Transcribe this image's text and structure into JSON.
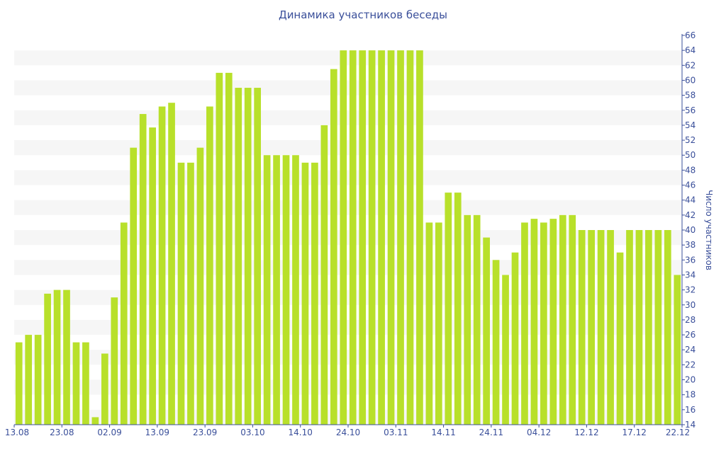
{
  "chart_data": {
    "type": "bar",
    "title": "Динамика участников беседы",
    "xlabel": "",
    "ylabel": "Число участников",
    "ylim": [
      14,
      66
    ],
    "yticks": [
      14,
      16,
      18,
      20,
      22,
      24,
      26,
      28,
      30,
      32,
      34,
      36,
      38,
      40,
      42,
      44,
      46,
      48,
      50,
      52,
      54,
      56,
      58,
      60,
      62,
      64,
      66
    ],
    "x_tick_labels": [
      "13.08",
      "23.08",
      "02.09",
      "13.09",
      "23.09",
      "03.10",
      "14.10",
      "24.10",
      "03.11",
      "14.11",
      "24.11",
      "04.12",
      "12.12",
      "17.12",
      "22.12"
    ],
    "grid": "horizontal-bands",
    "legend": "none",
    "values": [
      25,
      26,
      26,
      31.5,
      32,
      32,
      25,
      25,
      15,
      23.5,
      31,
      41,
      51,
      55.5,
      53.7,
      56.5,
      57,
      49,
      49,
      51,
      56.5,
      61,
      61,
      59,
      59,
      59,
      50,
      50,
      50,
      50,
      49,
      49,
      54,
      61.5,
      64,
      64,
      64,
      64,
      64,
      64,
      64,
      64,
      64,
      41,
      41,
      45,
      45,
      42,
      42,
      39,
      36,
      34,
      37,
      41,
      41.5,
      41,
      41.5,
      42,
      42,
      40,
      40,
      40,
      40,
      37,
      40,
      40,
      40,
      40,
      40,
      34
    ],
    "colors": {
      "bar": "#b8e02a",
      "band": "#f6f6f6",
      "axis": "#3a4f9a",
      "text": "#3a4f9a"
    }
  }
}
